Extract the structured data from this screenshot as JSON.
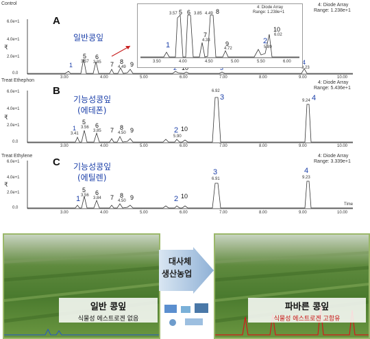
{
  "panels": [
    {
      "tag": "Control",
      "letter": "A",
      "title": "일반콩잎",
      "title2": "",
      "detector": "4: Diode Array",
      "range": "Range: 1.238e+1",
      "peaks": [
        {
          "n": "1",
          "rt": "",
          "num_color": "#1a3ea8"
        },
        {
          "n": "5",
          "rt": "3.57"
        },
        {
          "n": "6",
          "rt": "3.85"
        },
        {
          "n": "7",
          "rt": ""
        },
        {
          "n": "8",
          "rt": "4.49"
        },
        {
          "n": "9",
          "rt": ""
        },
        {
          "n": "2",
          "rt": "",
          "num_color": "#1a3ea8"
        },
        {
          "n": "10",
          "rt": ""
        },
        {
          "n": "3",
          "rt": "",
          "num_color": "#1a3ea8"
        },
        {
          "n": "4",
          "rt": "9.23",
          "num_color": "#1a3ea8"
        }
      ],
      "inset": {
        "peaks": [
          {
            "n": "5",
            "rt": "3.57"
          },
          {
            "n": "6",
            "rt": ""
          },
          {
            "n": "",
            "rt": "3.85"
          },
          {
            "n": "8",
            "rt": "4.49"
          },
          {
            "n": "7",
            "rt": "4.33"
          },
          {
            "n": "9",
            "rt": "4.72"
          },
          {
            "n": "1",
            "rt": "",
            "num_color": "#1a3ea8"
          },
          {
            "n": "2",
            "rt": "5.89",
            "num_color": "#1a3ea8"
          },
          {
            "n": "10",
            "rt": "6.02"
          }
        ],
        "xticks": [
          "3.50",
          "4.00",
          "4.50",
          "5.00",
          "5.50",
          "6.00"
        ],
        "detector": "4: Diode Array",
        "range": "Range: 1.238e+1"
      }
    },
    {
      "tag": "Treat Ethephon",
      "letter": "B",
      "title": "기능성콩잎",
      "title2": "(에테폰)",
      "detector": "4: Diode Array",
      "range": "Range: 5.436e+1",
      "peaks": [
        {
          "n": "1",
          "rt": "3.41",
          "num_color": "#1a3ea8"
        },
        {
          "n": "5",
          "rt": "3.56"
        },
        {
          "n": "6",
          "rt": "3.85"
        },
        {
          "n": "7",
          "rt": ""
        },
        {
          "n": "8",
          "rt": "4.50"
        },
        {
          "n": "9",
          "rt": ""
        },
        {
          "n": "2",
          "rt": "5.90",
          "num_color": "#1a3ea8"
        },
        {
          "n": "10",
          "rt": ""
        },
        {
          "n": "3",
          "rt": "6.92",
          "num_color": "#1a3ea8"
        },
        {
          "n": "4",
          "rt": "9.24",
          "num_color": "#1a3ea8"
        }
      ]
    },
    {
      "tag": "Treat Ethylene",
      "letter": "C",
      "title": "기능성콩잎",
      "title2": "(에틸렌)",
      "detector": "4: Diode Array",
      "range": "Range: 3.339e+1",
      "peaks": [
        {
          "n": "1",
          "rt": "",
          "num_color": "#1a3ea8"
        },
        {
          "n": "5",
          "rt": "3.56"
        },
        {
          "n": "6",
          "rt": "3.84"
        },
        {
          "n": "7",
          "rt": ""
        },
        {
          "n": "8",
          "rt": "4.50"
        },
        {
          "n": "9",
          "rt": ""
        },
        {
          "n": "2",
          "rt": "",
          "num_color": "#1a3ea8"
        },
        {
          "n": "10",
          "rt": ""
        },
        {
          "n": "3",
          "rt": "6.91",
          "num_color": "#1a3ea8"
        },
        {
          "n": "4",
          "rt": "9.23",
          "num_color": "#1a3ea8"
        }
      ]
    }
  ],
  "axis": {
    "yticks": [
      "0.0",
      "2.0e+1",
      "4.0e+1",
      "6.0e+1"
    ],
    "xticks": [
      "3.00",
      "4.00",
      "5.00",
      "6.00",
      "7.00",
      "8.00",
      "9.00",
      "10.00"
    ],
    "ylabel": "₹",
    "xlabel": "Time"
  },
  "bottom": {
    "left_title": "일반 콩잎",
    "left_sub": "식물성 에스트로겐 없음",
    "arrow_text1": "대사체",
    "arrow_text2": "생산농업",
    "right_title": "파바른 콩잎",
    "right_sub": "식물성 에스트로겐 고함유"
  },
  "colors": {
    "blue_label": "#1a3ea8",
    "dark": "#222222",
    "red": "#cc1a1a",
    "green_photo": "#5b8a3a"
  }
}
